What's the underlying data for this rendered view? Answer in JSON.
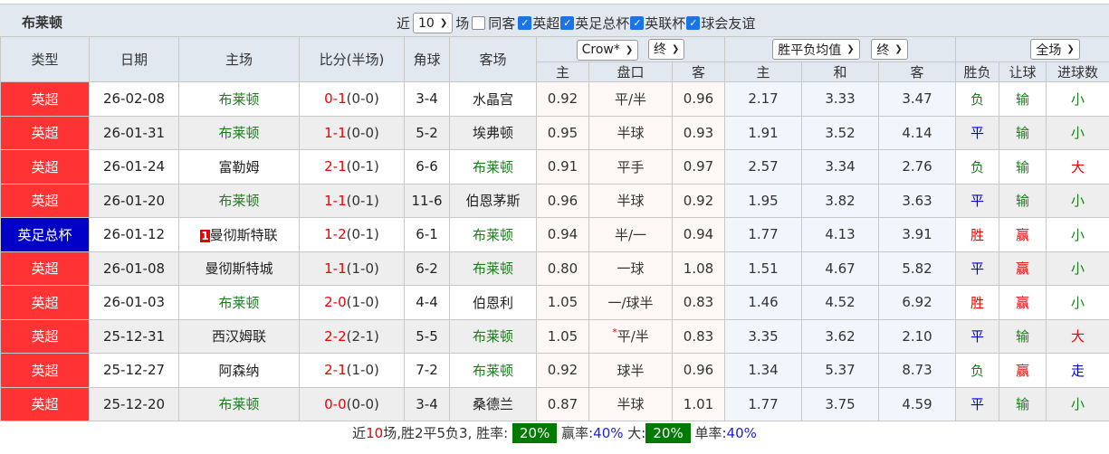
{
  "title": "布莱顿",
  "filters": {
    "near_label": "近",
    "count": "10",
    "matches_label": "场",
    "same_label": "同客",
    "same_checked": false,
    "leagues": [
      {
        "label": "英超",
        "checked": true
      },
      {
        "label": "英足总杯",
        "checked": true
      },
      {
        "label": "英联杯",
        "checked": true
      },
      {
        "label": "球会友谊",
        "checked": true
      }
    ]
  },
  "headers": {
    "type": "类型",
    "date": "日期",
    "home": "主场",
    "score": "比分(半场)",
    "corner": "角球",
    "away": "客场",
    "company_select": "Crow*",
    "company_period": "终",
    "avg_select": "胜平负均值",
    "avg_period": "终",
    "scope_select": "全场",
    "ah_home": "主",
    "ah_line": "盘口",
    "ah_away": "客",
    "eu_home": "主",
    "eu_draw": "和",
    "eu_away": "客",
    "wl": "胜负",
    "handicap": "让球",
    "goals": "进球数"
  },
  "colors": {
    "league": "#ff3333",
    "cup": "#0000c8",
    "team_highlight": "#1b7d1b",
    "win_badge": "#007a00"
  },
  "rows": [
    {
      "type": "英超",
      "cup": false,
      "date": "26-02-08",
      "home": "布莱顿",
      "home_hl": true,
      "home_rank": "",
      "ft": "0-1",
      "ht": "(0-0)",
      "corner": "3-4",
      "away": "水晶宫",
      "away_hl": false,
      "ah_h": "0.92",
      "line": "平/半",
      "line_star": "",
      "ah_a": "0.96",
      "eu_h": "2.17",
      "eu_d": "3.33",
      "eu_a": "3.47",
      "wl": "负",
      "hc": "输",
      "goals": "小"
    },
    {
      "type": "英超",
      "cup": false,
      "date": "26-01-31",
      "home": "布莱顿",
      "home_hl": true,
      "home_rank": "",
      "ft": "1-1",
      "ht": "(0-0)",
      "corner": "5-2",
      "away": "埃弗顿",
      "away_hl": false,
      "ah_h": "0.95",
      "line": "半球",
      "line_star": "",
      "ah_a": "0.93",
      "eu_h": "1.91",
      "eu_d": "3.52",
      "eu_a": "4.14",
      "wl": "平",
      "hc": "输",
      "goals": "小"
    },
    {
      "type": "英超",
      "cup": false,
      "date": "26-01-24",
      "home": "富勒姆",
      "home_hl": false,
      "home_rank": "",
      "ft": "2-1",
      "ht": "(0-1)",
      "corner": "6-6",
      "away": "布莱顿",
      "away_hl": true,
      "ah_h": "0.91",
      "line": "平手",
      "line_star": "",
      "ah_a": "0.97",
      "eu_h": "2.57",
      "eu_d": "3.34",
      "eu_a": "2.76",
      "wl": "负",
      "hc": "输",
      "goals": "大"
    },
    {
      "type": "英超",
      "cup": false,
      "date": "26-01-20",
      "home": "布莱顿",
      "home_hl": true,
      "home_rank": "",
      "ft": "1-1",
      "ht": "(0-1)",
      "corner": "11-6",
      "away": "伯恩茅斯",
      "away_hl": false,
      "ah_h": "0.96",
      "line": "半球",
      "line_star": "",
      "ah_a": "0.92",
      "eu_h": "1.95",
      "eu_d": "3.82",
      "eu_a": "3.63",
      "wl": "平",
      "hc": "输",
      "goals": "小"
    },
    {
      "type": "英足总杯",
      "cup": true,
      "date": "26-01-12",
      "home": "曼彻斯特联",
      "home_hl": false,
      "home_rank": "1",
      "ft": "1-2",
      "ht": "(0-1)",
      "corner": "6-1",
      "away": "布莱顿",
      "away_hl": true,
      "ah_h": "0.94",
      "line": "半/一",
      "line_star": "",
      "ah_a": "0.94",
      "eu_h": "1.77",
      "eu_d": "4.13",
      "eu_a": "3.91",
      "wl": "胜",
      "hc": "赢",
      "goals": "小"
    },
    {
      "type": "英超",
      "cup": false,
      "date": "26-01-08",
      "home": "曼彻斯特城",
      "home_hl": false,
      "home_rank": "",
      "ft": "1-1",
      "ht": "(1-0)",
      "corner": "6-2",
      "away": "布莱顿",
      "away_hl": true,
      "ah_h": "0.80",
      "line": "一球",
      "line_star": "",
      "ah_a": "1.08",
      "eu_h": "1.51",
      "eu_d": "4.67",
      "eu_a": "5.82",
      "wl": "平",
      "hc": "赢",
      "goals": "小"
    },
    {
      "type": "英超",
      "cup": false,
      "date": "26-01-03",
      "home": "布莱顿",
      "home_hl": true,
      "home_rank": "",
      "ft": "2-0",
      "ht": "(1-0)",
      "corner": "4-4",
      "away": "伯恩利",
      "away_hl": false,
      "ah_h": "1.05",
      "line": "一/球半",
      "line_star": "",
      "ah_a": "0.83",
      "eu_h": "1.46",
      "eu_d": "4.52",
      "eu_a": "6.92",
      "wl": "胜",
      "hc": "赢",
      "goals": "小"
    },
    {
      "type": "英超",
      "cup": false,
      "date": "25-12-31",
      "home": "西汉姆联",
      "home_hl": false,
      "home_rank": "",
      "ft": "2-2",
      "ht": "(2-1)",
      "corner": "5-5",
      "away": "布莱顿",
      "away_hl": true,
      "ah_h": "1.05",
      "line": "平/半",
      "line_star": "*",
      "ah_a": "0.83",
      "eu_h": "3.35",
      "eu_d": "3.62",
      "eu_a": "2.10",
      "wl": "平",
      "hc": "输",
      "goals": "大"
    },
    {
      "type": "英超",
      "cup": false,
      "date": "25-12-27",
      "home": "阿森纳",
      "home_hl": false,
      "home_rank": "",
      "ft": "2-1",
      "ht": "(1-0)",
      "corner": "7-2",
      "away": "布莱顿",
      "away_hl": true,
      "ah_h": "0.92",
      "line": "球半",
      "line_star": "",
      "ah_a": "0.96",
      "eu_h": "1.34",
      "eu_d": "5.37",
      "eu_a": "8.73",
      "wl": "负",
      "hc": "赢",
      "goals": "走"
    },
    {
      "type": "英超",
      "cup": false,
      "date": "25-12-20",
      "home": "布莱顿",
      "home_hl": true,
      "home_rank": "",
      "ft": "0-0",
      "ht": "(0-0)",
      "corner": "3-4",
      "away": "桑德兰",
      "away_hl": false,
      "ah_h": "0.87",
      "line": "半球",
      "line_star": "",
      "ah_a": "1.01",
      "eu_h": "1.77",
      "eu_d": "3.75",
      "eu_a": "4.59",
      "wl": "平",
      "hc": "输",
      "goals": "小"
    }
  ],
  "summary": {
    "prefix": "近",
    "count": "10",
    "text": "场,胜2平5负3, 胜率:",
    "win_rate": "20%",
    "ying_label": "赢率:",
    "ying_rate": "40%",
    "big_label": "大:",
    "big_rate": "20%",
    "odd_label": "单率:",
    "odd_rate": "40%"
  }
}
